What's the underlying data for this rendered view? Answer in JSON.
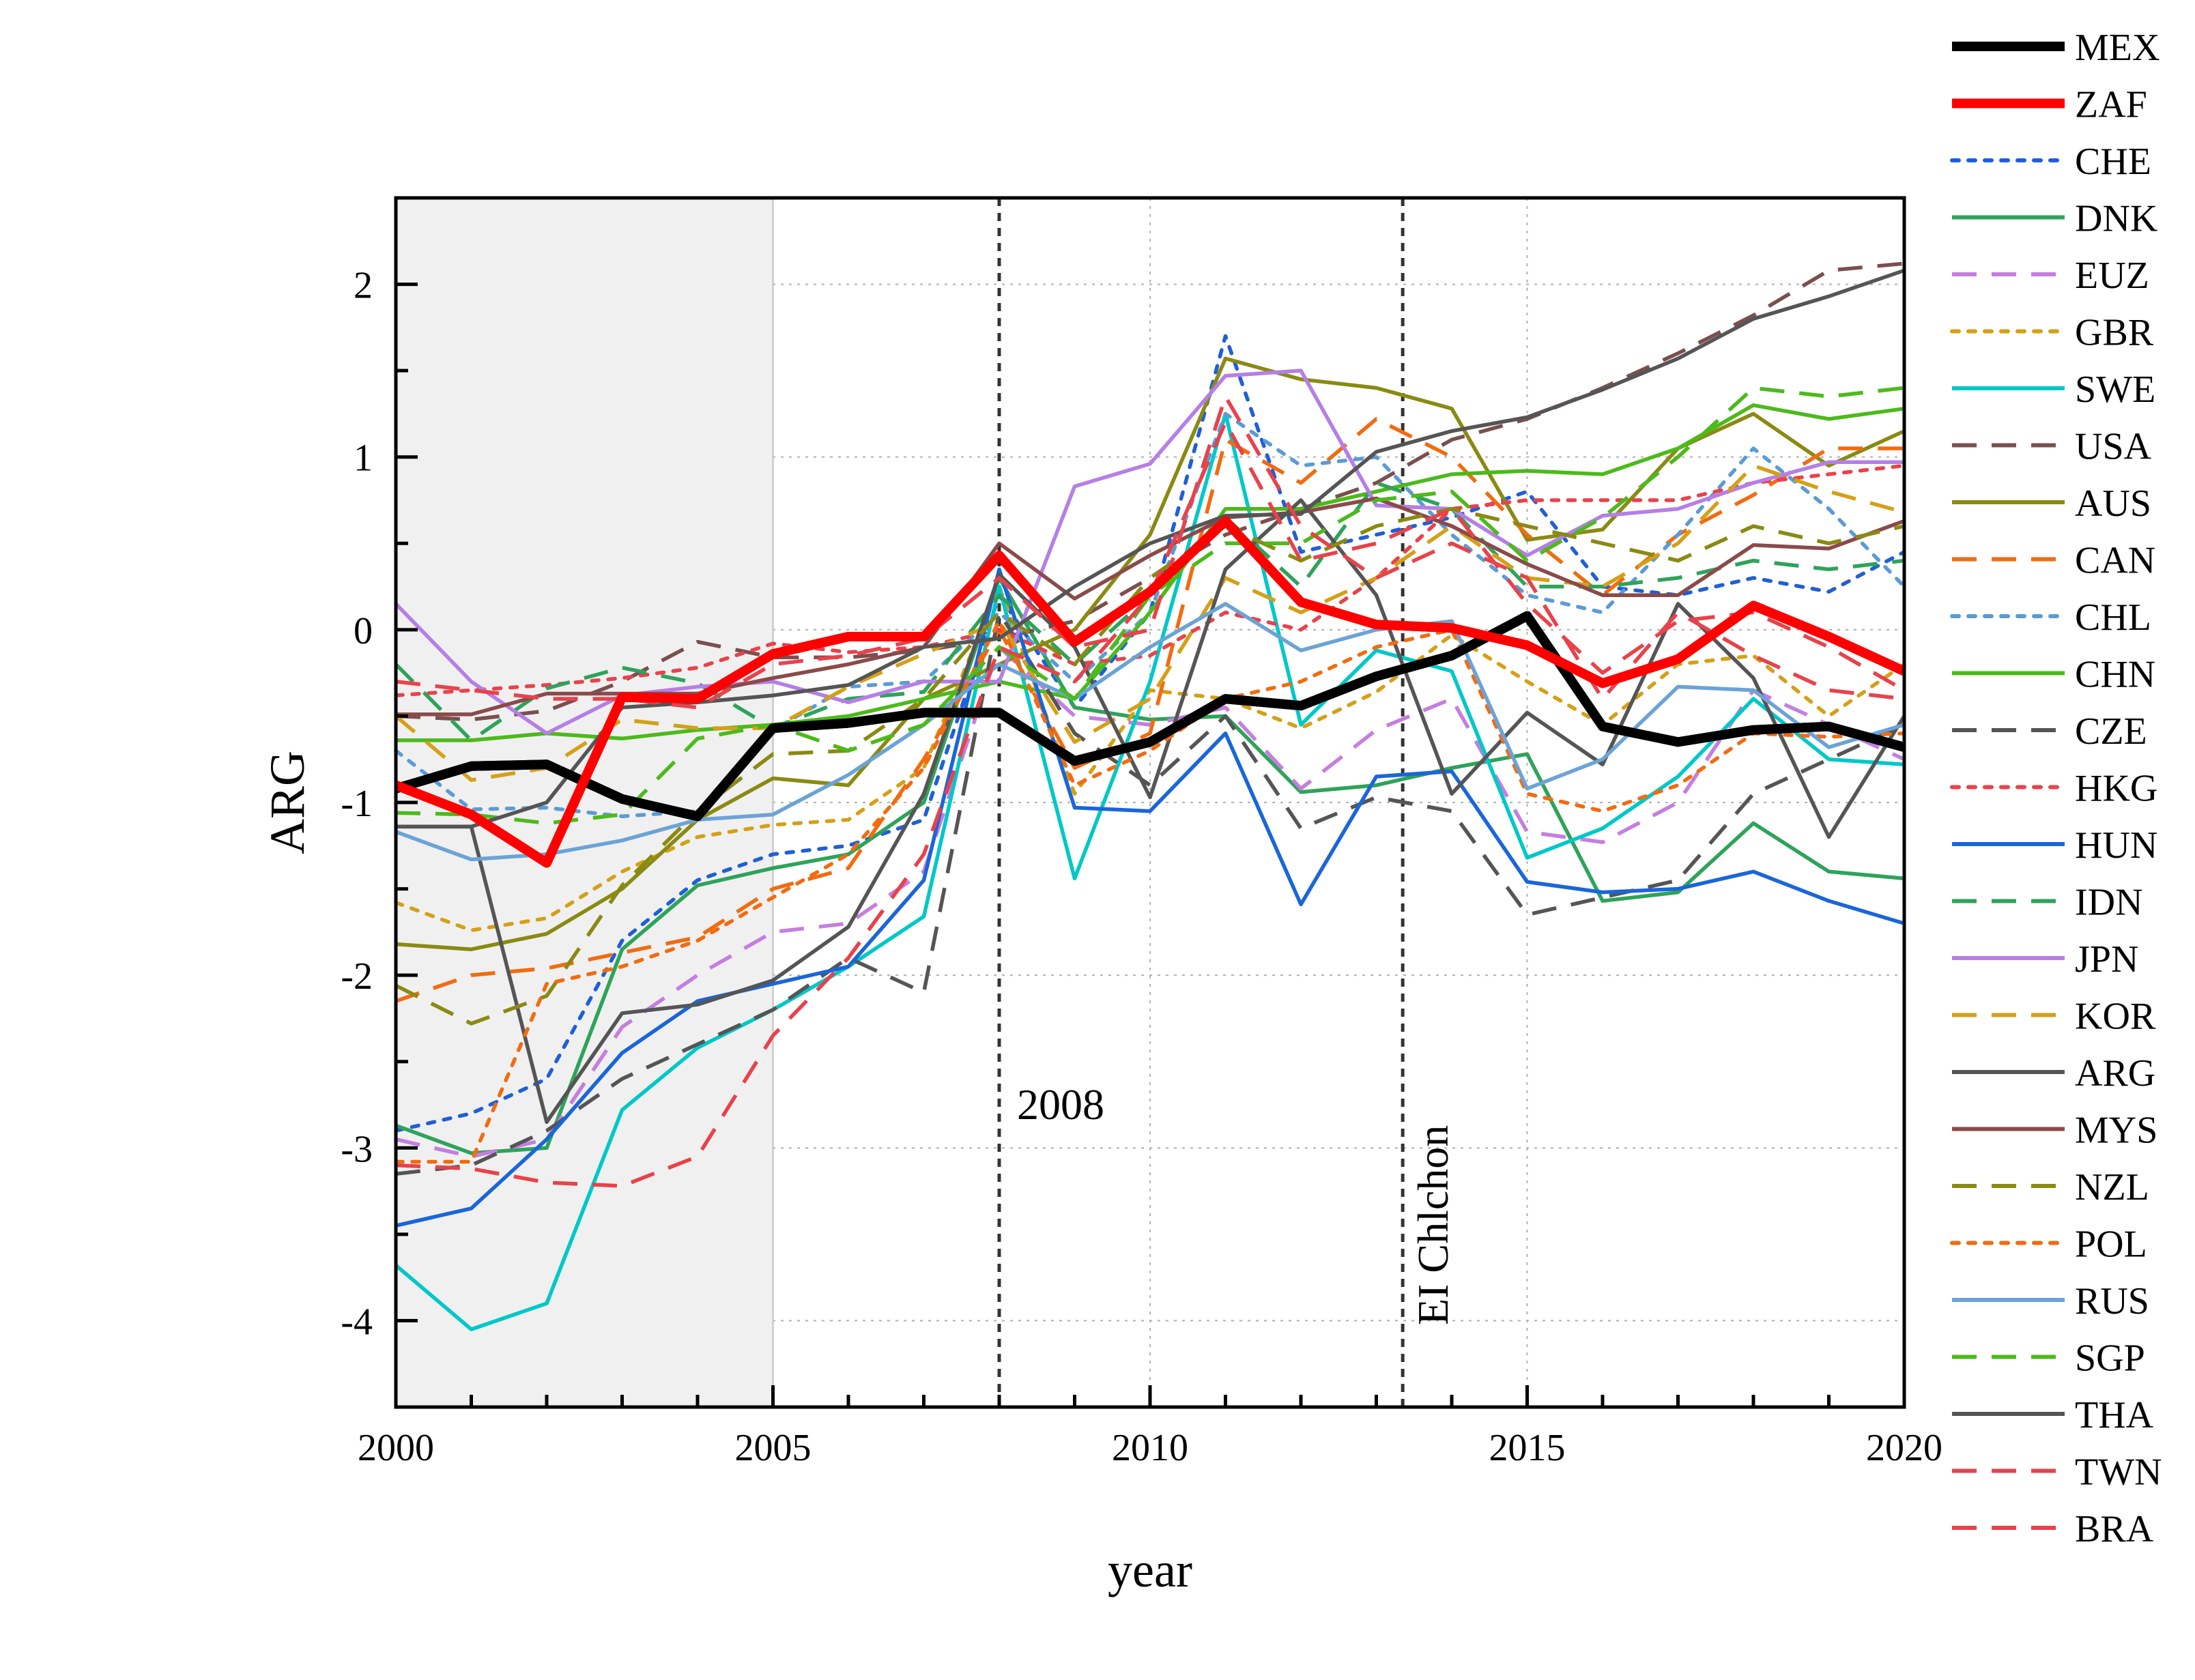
{
  "chart_data": {
    "type": "line",
    "xlabel": "year",
    "ylabel": "ARG",
    "xlim": [
      2000,
      2020
    ],
    "ylim": [
      -4.5,
      2.5
    ],
    "x_ticks": [
      2000,
      2005,
      2010,
      2015,
      2020
    ],
    "x_tick_labels": [
      "2000",
      "2005",
      "2010",
      "2015",
      "2020"
    ],
    "y_ticks": [
      -4,
      -3,
      -2,
      -1,
      0,
      1,
      2
    ],
    "y_tick_labels": [
      "-4",
      "-3",
      "-2",
      "-1",
      "0",
      "1",
      "2"
    ],
    "grid": true,
    "legend_position": "right",
    "shaded_region": {
      "x_start": 2000,
      "x_end": 2005,
      "color": "#f0f0f0"
    },
    "annotations": [
      {
        "x": 2008,
        "text": "2008"
      },
      {
        "x": 2013.35,
        "text": "EI Chlchon"
      }
    ],
    "x": [
      2000,
      2001,
      2002,
      2003,
      2004,
      2005,
      2006,
      2007,
      2008,
      2009,
      2010,
      2011,
      2012,
      2013,
      2014,
      2015,
      2016,
      2017,
      2018,
      2019,
      2020
    ],
    "series": [
      {
        "name": "MEX",
        "color": "#000000",
        "dash": "solid",
        "width": "thick",
        "values": [
          -0.92,
          -0.79,
          -0.78,
          -0.98,
          -1.08,
          -0.57,
          -0.54,
          -0.48,
          -0.48,
          -0.76,
          -0.65,
          -0.4,
          -0.44,
          -0.27,
          -0.15,
          0.08,
          -0.56,
          -0.65,
          -0.58,
          -0.56,
          -0.68
        ]
      },
      {
        "name": "ZAF",
        "color": "#ff0000",
        "dash": "solid",
        "width": "thick",
        "values": [
          -0.9,
          -1.07,
          -1.35,
          -0.39,
          -0.4,
          -0.14,
          -0.04,
          -0.04,
          0.43,
          -0.07,
          0.22,
          0.63,
          0.16,
          0.03,
          0.01,
          -0.09,
          -0.31,
          -0.17,
          0.14,
          -0.04,
          -0.24
        ]
      },
      {
        "name": "CHE",
        "color": "#1f5fd6",
        "dash": "dot",
        "width": "thin",
        "values": [
          -2.9,
          -2.8,
          -2.6,
          -1.8,
          -1.45,
          -1.3,
          -1.25,
          -1.1,
          0.2,
          -0.45,
          0.1,
          1.7,
          0.45,
          0.55,
          0.65,
          0.8,
          0.25,
          0.2,
          0.3,
          0.22,
          0.45
        ]
      },
      {
        "name": "DNK",
        "color": "#2ea35a",
        "dash": "solid",
        "width": "thin",
        "values": [
          -2.87,
          -3.03,
          -3.0,
          -1.85,
          -1.48,
          -1.38,
          -1.3,
          -1.0,
          0.3,
          -0.45,
          -0.52,
          -0.5,
          -0.94,
          -0.9,
          -0.8,
          -0.72,
          -1.57,
          -1.52,
          -1.12,
          -1.4,
          -1.44
        ]
      },
      {
        "name": "EUZ",
        "color": "#c57ee0",
        "dash": "dash",
        "width": "thin",
        "values": [
          -2.95,
          -3.05,
          -2.95,
          -2.3,
          -2.0,
          -1.75,
          -1.7,
          -1.4,
          -0.1,
          -0.5,
          -0.55,
          -0.45,
          -0.92,
          -0.58,
          -0.4,
          -1.17,
          -1.23,
          -1.0,
          -0.35,
          -0.55,
          -0.75
        ]
      },
      {
        "name": "GBR",
        "color": "#d4a017",
        "dash": "dot",
        "width": "thin",
        "values": [
          -1.58,
          -1.74,
          -1.67,
          -1.4,
          -1.2,
          -1.13,
          -1.1,
          -0.8,
          0.25,
          -0.95,
          -0.35,
          -0.4,
          -0.57,
          -0.36,
          -0.03,
          -0.3,
          -0.55,
          -0.2,
          -0.15,
          -0.5,
          -0.2
        ]
      },
      {
        "name": "SWE",
        "color": "#00c8c8",
        "dash": "solid",
        "width": "thin",
        "values": [
          -3.68,
          -4.05,
          -3.9,
          -2.78,
          -2.42,
          -2.2,
          -1.95,
          -1.66,
          0.25,
          -1.44,
          -0.3,
          1.25,
          -0.55,
          -0.12,
          -0.24,
          -1.32,
          -1.15,
          -0.85,
          -0.4,
          -0.75,
          -0.78
        ]
      },
      {
        "name": "USA",
        "color": "#7b4f4f",
        "dash": "dash",
        "width": "thin",
        "values": [
          -0.5,
          -0.52,
          -0.47,
          -0.3,
          -0.07,
          -0.16,
          -0.16,
          -0.12,
          -0.05,
          0.05,
          0.3,
          0.55,
          0.7,
          0.85,
          1.1,
          1.22,
          1.4,
          1.6,
          1.82,
          2.08,
          2.12
        ]
      },
      {
        "name": "AUS",
        "color": "#8a8a12",
        "dash": "solid",
        "width": "thin",
        "values": [
          -1.82,
          -1.85,
          -1.76,
          -1.5,
          -1.1,
          -0.86,
          -0.9,
          -0.4,
          -0.2,
          0.0,
          0.55,
          1.57,
          1.45,
          1.4,
          1.28,
          0.52,
          0.58,
          1.05,
          1.25,
          0.95,
          1.15
        ]
      },
      {
        "name": "CAN",
        "color": "#f26b10",
        "dash": "dash",
        "width": "thin",
        "values": [
          -2.15,
          -2.0,
          -1.96,
          -1.87,
          -1.78,
          -1.5,
          -1.38,
          -0.75,
          0.0,
          -0.8,
          -0.6,
          1.1,
          0.85,
          1.22,
          1.0,
          0.55,
          0.2,
          0.55,
          0.78,
          1.05,
          1.05
        ]
      },
      {
        "name": "CHL",
        "color": "#5b9bd5",
        "dash": "dot",
        "width": "thin",
        "values": [
          -0.7,
          -1.04,
          -1.03,
          -1.08,
          -1.05,
          -0.58,
          -0.33,
          -0.3,
          0.1,
          -0.3,
          0.1,
          1.25,
          0.95,
          1.0,
          0.55,
          0.2,
          0.1,
          0.55,
          1.05,
          0.7,
          0.25
        ]
      },
      {
        "name": "CHN",
        "color": "#4cba1a",
        "dash": "solid",
        "width": "thin",
        "values": [
          -0.64,
          -0.64,
          -0.6,
          -0.63,
          -0.58,
          -0.55,
          -0.5,
          -0.4,
          -0.3,
          -0.4,
          0.1,
          0.7,
          0.7,
          0.8,
          0.9,
          0.92,
          0.9,
          1.05,
          1.3,
          1.22,
          1.28
        ]
      },
      {
        "name": "CZE",
        "color": "#555555",
        "dash": "dash",
        "width": "thin",
        "values": [
          -3.15,
          -3.1,
          -2.9,
          -2.6,
          -2.4,
          -2.2,
          -1.9,
          -2.1,
          0.1,
          -0.6,
          -0.9,
          -0.5,
          -1.15,
          -0.97,
          -1.05,
          -1.65,
          -1.55,
          -1.45,
          -0.95,
          -0.75,
          -0.55
        ]
      },
      {
        "name": "HKG",
        "color": "#e8424b",
        "dash": "dot",
        "width": "thin",
        "values": [
          -0.38,
          -0.35,
          -0.32,
          -0.28,
          -0.22,
          -0.08,
          -0.13,
          -0.1,
          0.0,
          -0.2,
          -0.15,
          0.1,
          0.0,
          0.3,
          0.7,
          0.75,
          0.75,
          0.75,
          0.85,
          0.9,
          0.95
        ]
      },
      {
        "name": "HUN",
        "color": "#1a66d9",
        "dash": "solid",
        "width": "thin",
        "values": [
          -3.45,
          -3.35,
          -2.95,
          -2.45,
          -2.15,
          -2.05,
          -1.95,
          -1.45,
          0.35,
          -1.03,
          -1.05,
          -0.6,
          -1.59,
          -0.85,
          -0.82,
          -1.46,
          -1.52,
          -1.5,
          -1.4,
          -1.57,
          -1.7
        ]
      },
      {
        "name": "IDN",
        "color": "#2ea35a",
        "dash": "dash",
        "width": "thin",
        "values": [
          -0.2,
          -0.64,
          -0.34,
          -0.22,
          -0.31,
          -0.57,
          -0.4,
          -0.36,
          0.2,
          -0.2,
          0.2,
          0.65,
          0.25,
          0.85,
          0.7,
          0.25,
          0.25,
          0.3,
          0.4,
          0.35,
          0.4
        ]
      },
      {
        "name": "JPN",
        "color": "#b57fe6",
        "dash": "solid",
        "width": "thin",
        "values": [
          0.15,
          -0.3,
          -0.6,
          -0.38,
          -0.33,
          -0.3,
          -0.42,
          -0.3,
          -0.3,
          0.83,
          0.96,
          1.47,
          1.5,
          0.72,
          0.7,
          0.43,
          0.66,
          0.7,
          0.85,
          0.97,
          0.97
        ]
      },
      {
        "name": "KOR",
        "color": "#d4a017",
        "dash": "dash",
        "width": "thin",
        "values": [
          -0.5,
          -0.87,
          -0.8,
          -0.52,
          -0.57,
          -0.57,
          -0.33,
          -0.14,
          0.05,
          -0.65,
          -0.4,
          0.3,
          0.1,
          0.3,
          0.6,
          0.3,
          0.25,
          0.5,
          0.95,
          0.8,
          0.68
        ]
      },
      {
        "name": "ARG",
        "color": "#555555",
        "dash": "solid",
        "width": "thin",
        "values": [
          -1.14,
          -1.14,
          -2.85,
          -2.22,
          -2.17,
          -2.03,
          -1.72,
          -0.95,
          0.32,
          -0.1,
          -0.97,
          0.35,
          0.75,
          0.2,
          -0.95,
          -0.48,
          -0.78,
          0.15,
          -0.28,
          -1.2,
          -0.5
        ]
      },
      {
        "name": "MYS",
        "color": "#8b4a4a",
        "dash": "solid",
        "width": "thin",
        "values": [
          -0.49,
          -0.49,
          -0.37,
          -0.37,
          -0.37,
          -0.28,
          -0.2,
          -0.1,
          0.5,
          0.18,
          0.43,
          0.65,
          0.68,
          0.76,
          0.6,
          0.38,
          0.2,
          0.2,
          0.49,
          0.47,
          0.63
        ]
      },
      {
        "name": "NZL",
        "color": "#8a8a12",
        "dash": "dash",
        "width": "thin",
        "values": [
          -2.06,
          -2.28,
          -2.12,
          -1.48,
          -1.05,
          -0.72,
          -0.7,
          -0.4,
          0.1,
          -0.2,
          0.3,
          0.6,
          0.4,
          0.6,
          0.7,
          0.6,
          0.5,
          0.4,
          0.6,
          0.5,
          0.6
        ]
      },
      {
        "name": "POL",
        "color": "#f26b10",
        "dash": "dot",
        "width": "thin",
        "values": [
          -3.08,
          -3.08,
          -2.05,
          -1.95,
          -1.8,
          -1.55,
          -1.3,
          -0.8,
          0.05,
          -0.9,
          -0.7,
          -0.4,
          -0.3,
          -0.1,
          0.0,
          -0.95,
          -1.05,
          -0.9,
          -0.6,
          -0.62,
          -0.6
        ]
      },
      {
        "name": "RUS",
        "color": "#6ba3d6",
        "dash": "solid",
        "width": "thin",
        "values": [
          -1.17,
          -1.33,
          -1.3,
          -1.22,
          -1.1,
          -1.07,
          -0.84,
          -0.55,
          -0.2,
          -0.4,
          -0.1,
          0.15,
          -0.12,
          0.0,
          0.05,
          -0.92,
          -0.75,
          -0.33,
          -0.35,
          -0.68,
          -0.55
        ]
      },
      {
        "name": "SGP",
        "color": "#4cba1a",
        "dash": "dash",
        "width": "thin",
        "values": [
          -1.06,
          -1.07,
          -1.12,
          -1.07,
          -0.63,
          -0.55,
          -0.7,
          -0.55,
          -0.1,
          -0.4,
          0.2,
          0.5,
          0.5,
          0.75,
          0.8,
          0.4,
          0.65,
          1.0,
          1.4,
          1.35,
          1.4
        ]
      },
      {
        "name": "THA",
        "color": "#555555",
        "dash": "solid",
        "width": "thin",
        "values": [
          -1.14,
          -1.14,
          -1.0,
          -0.45,
          -0.42,
          -0.38,
          -0.32,
          -0.1,
          -0.05,
          0.25,
          0.5,
          0.66,
          0.67,
          1.03,
          1.15,
          1.23,
          1.39,
          1.57,
          1.8,
          1.93,
          2.08
        ]
      },
      {
        "name": "TWN",
        "color": "#e8424b",
        "dash": "dash",
        "width": "thin",
        "values": [
          -0.3,
          -0.35,
          -0.4,
          -0.4,
          -0.45,
          -0.2,
          -0.15,
          -0.05,
          0.3,
          -0.1,
          0.0,
          1.35,
          0.6,
          0.3,
          0.5,
          0.3,
          -0.4,
          0.1,
          -0.15,
          -0.35,
          -0.4
        ]
      },
      {
        "name": "BRA",
        "color": "#e8424b",
        "dash": "dash",
        "width": "thin",
        "values": [
          -3.1,
          -3.12,
          -3.2,
          -3.22,
          -3.05,
          -2.35,
          -1.9,
          -1.3,
          -0.1,
          -0.3,
          0.2,
          1.2,
          0.4,
          0.5,
          0.7,
          0.15,
          -0.25,
          0.05,
          0.1,
          -0.1,
          -0.35
        ]
      }
    ]
  }
}
